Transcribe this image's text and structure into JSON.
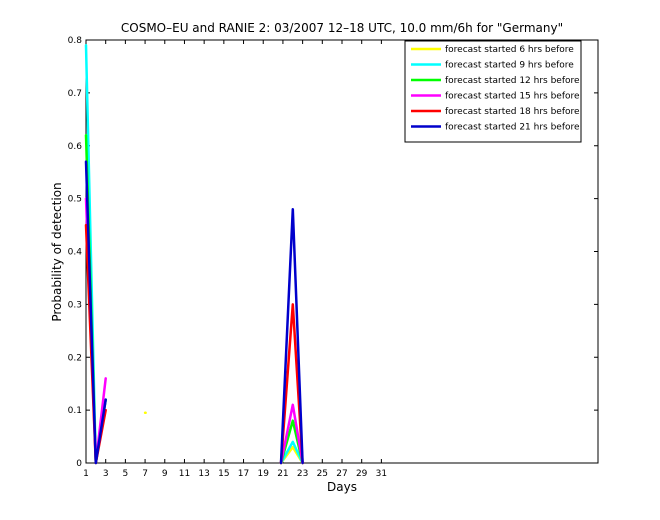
{
  "chart_data": {
    "type": "line",
    "title": "COSMO–EU and RANIE 2: 03/2007 12–18 UTC, 10.0 mm/6h for \"Germany\"",
    "xlabel": "Days",
    "ylabel": "Probability of detection",
    "xlim": [
      1,
      53
    ],
    "ylim": [
      0,
      0.8
    ],
    "xticks": [
      1,
      3,
      5,
      7,
      9,
      11,
      13,
      15,
      17,
      19,
      21,
      23,
      25,
      27,
      29,
      31
    ],
    "yticks": [
      0,
      0.1,
      0.2,
      0.3,
      0.4,
      0.5,
      0.6,
      0.7,
      0.8
    ],
    "legend_position": "top-right",
    "grid": false,
    "series": [
      {
        "name": "forecast started 6 hrs before",
        "color": "#ffff00",
        "segments": [
          [
            [
              7,
              0.095
            ],
            [
              7.05,
              0.095
            ]
          ],
          [
            [
              20.8,
              0
            ],
            [
              22,
              0.03
            ],
            [
              23,
              0
            ]
          ]
        ]
      },
      {
        "name": "forecast started 9 hrs before",
        "color": "#00ffff",
        "segments": [
          [
            [
              1,
              0.79
            ],
            [
              2,
              0
            ],
            [
              3,
              0.12
            ]
          ],
          [
            [
              20.8,
              0
            ],
            [
              22,
              0.04
            ],
            [
              23,
              0
            ]
          ]
        ]
      },
      {
        "name": "forecast started 12 hrs before",
        "color": "#00ff00",
        "segments": [
          [
            [
              1,
              0.62
            ],
            [
              2,
              0
            ],
            [
              3,
              0.12
            ]
          ],
          [
            [
              20.8,
              0
            ],
            [
              22,
              0.08
            ],
            [
              23,
              0
            ]
          ]
        ]
      },
      {
        "name": "forecast started 15 hrs before",
        "color": "#ff00ff",
        "segments": [
          [
            [
              1,
              0.5
            ],
            [
              2,
              0
            ],
            [
              3,
              0.16
            ]
          ],
          [
            [
              20.8,
              0
            ],
            [
              22,
              0.11
            ],
            [
              23,
              0
            ]
          ]
        ]
      },
      {
        "name": "forecast started 18 hrs before",
        "color": "#ff0000",
        "segments": [
          [
            [
              1,
              0.45
            ],
            [
              2,
              0
            ],
            [
              3,
              0.1
            ]
          ],
          [
            [
              20.8,
              0
            ],
            [
              22,
              0.3
            ],
            [
              23,
              0
            ]
          ]
        ]
      },
      {
        "name": "forecast started 21 hrs before",
        "color": "#0000cc",
        "segments": [
          [
            [
              1,
              0.57
            ],
            [
              2,
              0
            ],
            [
              3,
              0.12
            ]
          ],
          [
            [
              20.8,
              0
            ],
            [
              22,
              0.48
            ],
            [
              23,
              0
            ]
          ]
        ]
      }
    ]
  }
}
